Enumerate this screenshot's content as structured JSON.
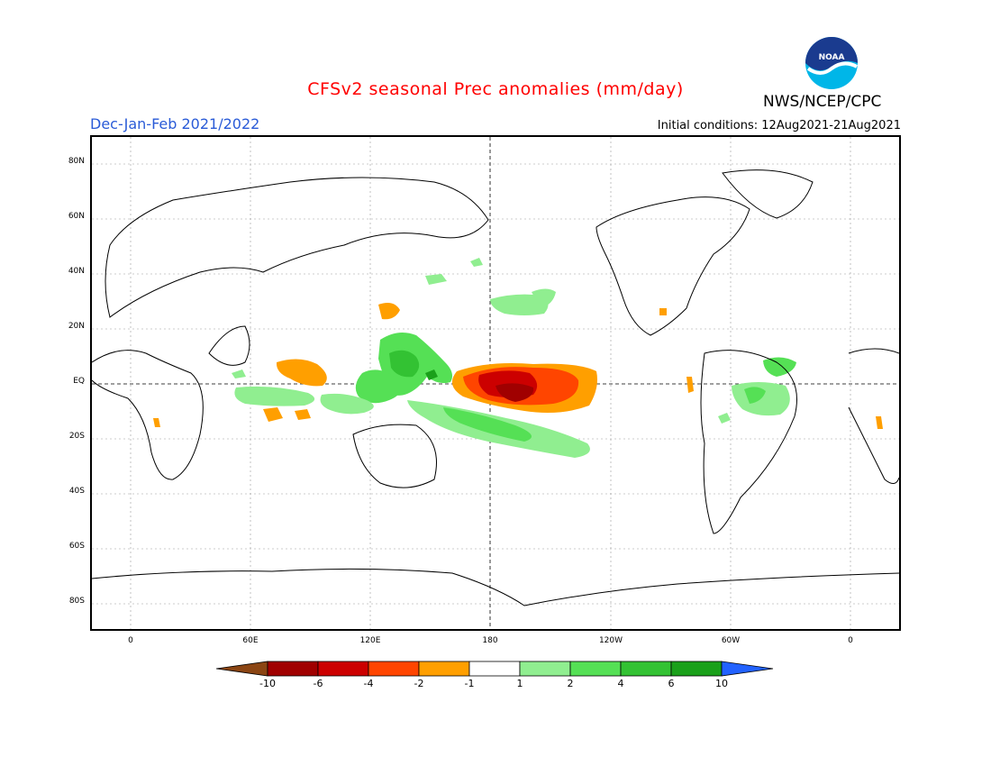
{
  "title": "CFSv2 seasonal Prec anomalies (mm/day)",
  "season": "Dec-Jan-Feb 2021/2022",
  "initial_conditions": "Initial conditions: 12Aug2021-21Aug2021",
  "agency": "NWS/NCEP/CPC",
  "logo_text": "NOAA",
  "lat_labels": [
    "80N",
    "60N",
    "40N",
    "20N",
    "EQ",
    "20S",
    "40S",
    "60S",
    "80S"
  ],
  "lon_labels": [
    "0",
    "60E",
    "120E",
    "180",
    "120W",
    "60W",
    "0"
  ],
  "colorbar_labels": [
    "-10",
    "-6",
    "-4",
    "-2",
    "-1",
    "1",
    "2",
    "4",
    "6",
    "10"
  ],
  "colors": {
    "title": "#ff0000",
    "season": "#2a5bd7",
    "bins": [
      "#8b4513",
      "#a00000",
      "#cc0000",
      "#ff4500",
      "#ff9f00",
      "#ffffff",
      "#90ee90",
      "#55e055",
      "#33c233",
      "#1aa01a",
      "#2262ff"
    ]
  }
}
